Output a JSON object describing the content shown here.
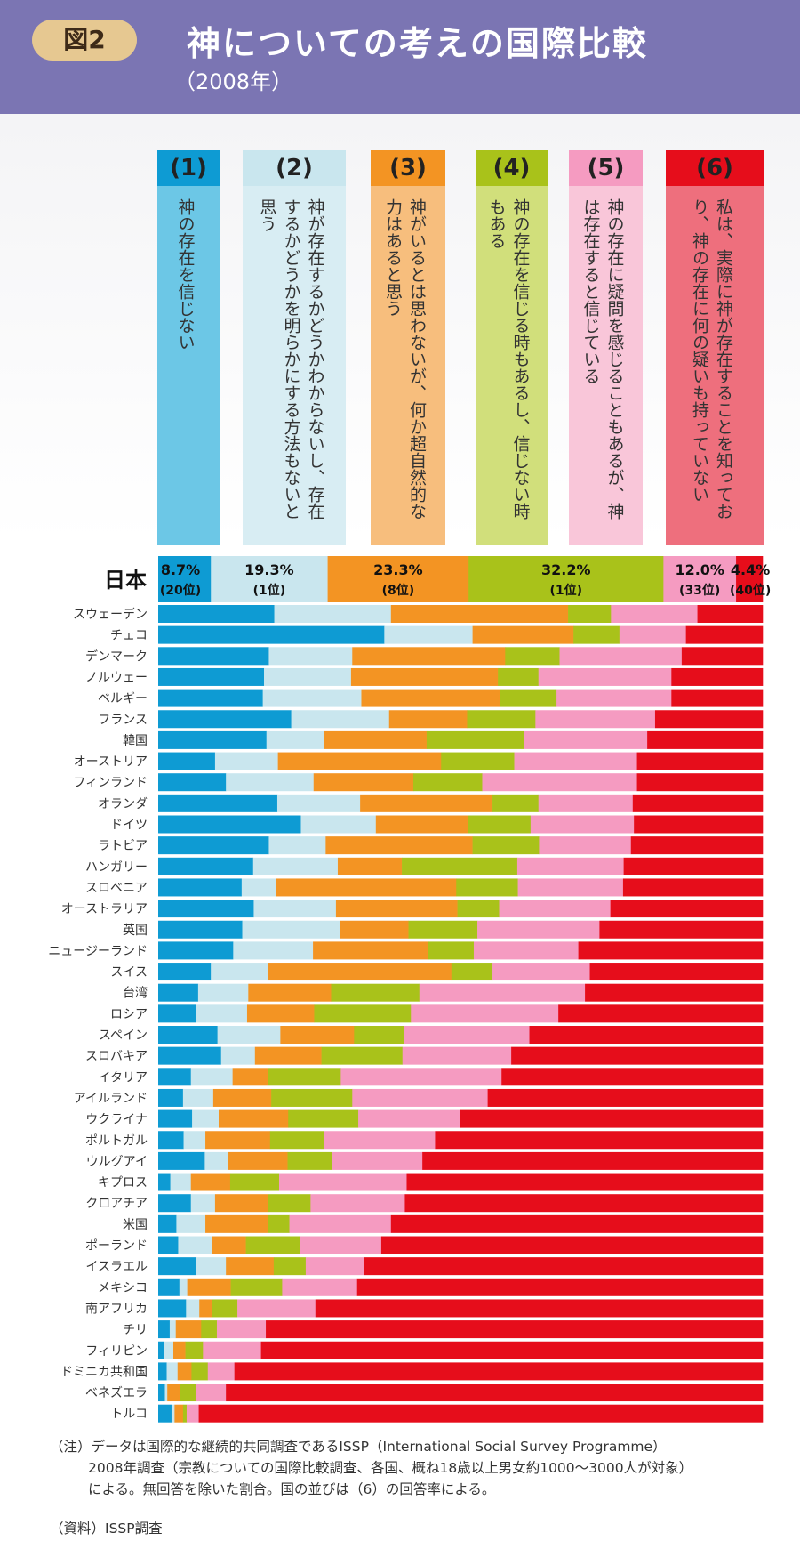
{
  "header": {
    "badge": "図2",
    "title": "神についての考えの国際比較",
    "subtitle": "（2008年）"
  },
  "legend": [
    {
      "num": "(1)",
      "text": "神の存在を信じない"
    },
    {
      "num": "(2)",
      "text": "神が存在するかどうかわからないし、存在するかどうかを明らかにする方法もないと思う"
    },
    {
      "num": "(3)",
      "text": "神がいるとは思わないが、何か超自然的な力はあると思う"
    },
    {
      "num": "(4)",
      "text": "神の存在を信じる時もあるし、信じない時もある"
    },
    {
      "num": "(5)",
      "text": "神の存在に疑問を感じることもあるが、神は存在すると信じている"
    },
    {
      "num": "(6)",
      "text": "私は、実際に神が存在することを知っており、神の存在に何の疑いも持っていない"
    }
  ],
  "colors": {
    "c1": "#0e9bd3",
    "c2": "#c9e6ee",
    "c3": "#f39423",
    "c4": "#a9c21a",
    "c5": "#f59bc1",
    "c6": "#e60d1b",
    "box1": "#6cc7e6",
    "box2": "#d8edf3",
    "box3": "#f7be7d",
    "box4": "#d1df7b",
    "box5": "#f9c6d9",
    "box6": "#ee6f7d",
    "head1": "#0e9bd3",
    "head2": "#c9e6ee",
    "head3": "#f39423",
    "head4": "#a9c21a",
    "head5": "#f59bc1",
    "head6": "#e60d1b"
  },
  "chart_data": {
    "type": "bar",
    "orientation": "horizontal-stacked-100",
    "series_names": [
      "(1)",
      "(2)",
      "(3)",
      "(4)",
      "(5)",
      "(6)"
    ],
    "japan": {
      "label": "日本",
      "values": [
        8.7,
        19.3,
        23.3,
        32.2,
        12.0,
        4.4
      ],
      "value_labels": [
        "8.7%",
        "19.3%",
        "23.3%",
        "32.2%",
        "12.0%",
        "4.4%"
      ],
      "rank_labels": [
        "(20位)",
        "(1位)",
        "(8位)",
        "(1位)",
        "(33位)",
        "(40位)"
      ]
    },
    "countries": [
      {
        "name": "スウェーデン",
        "values": [
          19.2,
          19.3,
          29.3,
          7.1,
          14.3,
          10.8
        ]
      },
      {
        "name": "チェコ",
        "values": [
          37.4,
          14.6,
          16.7,
          7.6,
          11.0,
          12.7
        ]
      },
      {
        "name": "デンマーク",
        "values": [
          18.3,
          13.8,
          25.3,
          9.0,
          20.2,
          13.4
        ]
      },
      {
        "name": "ノルウェー",
        "values": [
          17.5,
          14.4,
          24.3,
          6.7,
          22.0,
          15.1
        ]
      },
      {
        "name": "ベルギー",
        "values": [
          17.3,
          16.3,
          22.9,
          9.4,
          19.0,
          15.1
        ]
      },
      {
        "name": "フランス",
        "values": [
          22.0,
          16.2,
          12.9,
          11.3,
          19.8,
          17.8
        ]
      },
      {
        "name": "韓国",
        "values": [
          17.9,
          9.6,
          16.9,
          16.1,
          20.4,
          19.1
        ]
      },
      {
        "name": "オーストリア",
        "values": [
          9.4,
          10.4,
          27.0,
          12.1,
          20.3,
          20.8
        ]
      },
      {
        "name": "フィンランド",
        "values": [
          11.2,
          14.5,
          16.5,
          11.4,
          25.6,
          20.8
        ]
      },
      {
        "name": "オランダ",
        "values": [
          19.7,
          13.7,
          21.9,
          7.6,
          15.6,
          21.5
        ]
      },
      {
        "name": "ドイツ",
        "values": [
          23.6,
          12.4,
          15.2,
          10.4,
          17.1,
          21.3
        ]
      },
      {
        "name": "ラトビア",
        "values": [
          18.3,
          9.4,
          24.3,
          11.0,
          15.2,
          21.8
        ]
      },
      {
        "name": "ハンガリー",
        "values": [
          15.7,
          14.0,
          10.6,
          19.1,
          17.6,
          23.0
        ]
      },
      {
        "name": "スロベニア",
        "values": [
          13.8,
          5.7,
          29.8,
          10.2,
          17.4,
          23.1
        ]
      },
      {
        "name": "オーストラリア",
        "values": [
          15.8,
          13.6,
          20.1,
          6.9,
          18.4,
          25.2
        ]
      },
      {
        "name": "英国",
        "values": [
          13.9,
          16.2,
          11.3,
          11.4,
          20.2,
          27.0
        ]
      },
      {
        "name": "ニュージーランド",
        "values": [
          12.4,
          13.2,
          19.1,
          7.5,
          17.3,
          30.5
        ]
      },
      {
        "name": "スイス",
        "values": [
          8.7,
          9.5,
          30.3,
          6.8,
          16.1,
          28.6
        ]
      },
      {
        "name": "台湾",
        "values": [
          6.6,
          8.3,
          13.7,
          14.6,
          27.4,
          29.4
        ]
      },
      {
        "name": "ロシア",
        "values": [
          6.2,
          8.5,
          11.1,
          16.0,
          24.4,
          33.8
        ]
      },
      {
        "name": "スペイン",
        "values": [
          9.8,
          10.4,
          12.2,
          8.3,
          20.7,
          38.6
        ]
      },
      {
        "name": "スロバキア",
        "values": [
          10.4,
          5.6,
          11.0,
          13.4,
          18.0,
          41.6
        ]
      },
      {
        "name": "イタリア",
        "values": [
          5.4,
          6.9,
          5.8,
          12.1,
          26.6,
          43.2
        ]
      },
      {
        "name": "アイルランド",
        "values": [
          4.1,
          5.0,
          9.6,
          13.4,
          22.4,
          45.5
        ]
      },
      {
        "name": "ウクライナ",
        "values": [
          5.6,
          4.4,
          11.5,
          11.6,
          16.9,
          50.0
        ]
      },
      {
        "name": "ポルトガル",
        "values": [
          4.2,
          3.6,
          10.7,
          8.9,
          18.4,
          54.2
        ]
      },
      {
        "name": "ウルグアイ",
        "values": [
          7.7,
          3.9,
          9.8,
          7.4,
          14.9,
          56.3
        ]
      },
      {
        "name": "キプロス",
        "values": [
          2.0,
          3.4,
          6.5,
          8.1,
          21.1,
          58.9
        ]
      },
      {
        "name": "クロアチア",
        "values": [
          5.4,
          4.0,
          8.7,
          7.1,
          15.6,
          59.2
        ]
      },
      {
        "name": "米国",
        "values": [
          3.0,
          4.8,
          10.3,
          3.6,
          16.8,
          61.5
        ]
      },
      {
        "name": "ポーランド",
        "values": [
          3.3,
          5.6,
          5.6,
          8.9,
          13.5,
          63.1
        ]
      },
      {
        "name": "イスラエル",
        "values": [
          6.3,
          4.9,
          7.9,
          5.3,
          9.6,
          66.0
        ]
      },
      {
        "name": "メキシコ",
        "values": [
          3.5,
          1.3,
          7.2,
          8.5,
          12.4,
          67.1
        ]
      },
      {
        "name": "南アフリカ",
        "values": [
          4.6,
          2.2,
          2.1,
          4.2,
          12.9,
          74.0
        ]
      },
      {
        "name": "チリ",
        "values": [
          1.9,
          1.0,
          4.2,
          2.6,
          8.1,
          82.2
        ]
      },
      {
        "name": "フィリピン",
        "values": [
          0.9,
          1.6,
          2.0,
          2.9,
          9.6,
          83.0
        ]
      },
      {
        "name": "ドミニカ共和国",
        "values": [
          1.4,
          1.8,
          2.3,
          2.7,
          4.4,
          87.4
        ]
      },
      {
        "name": "ベネズエラ",
        "values": [
          1.1,
          0.4,
          2.1,
          2.6,
          5.0,
          88.8
        ]
      },
      {
        "name": "トルコ",
        "values": [
          2.2,
          0.5,
          1.4,
          0.6,
          2.0,
          93.3
        ]
      }
    ]
  },
  "notes": {
    "line1": "（注）データは国際的な継続的共同調査であるISSP（International Social Survey Programme）",
    "line2": "2008年調査（宗教についての国際比較調査、各国、概ね18歳以上男女約1000〜3000人が対象）",
    "line3": "による。無回答を除いた割合。国の並びは（6）の回答率による。",
    "source": "（資料）ISSP調査"
  }
}
